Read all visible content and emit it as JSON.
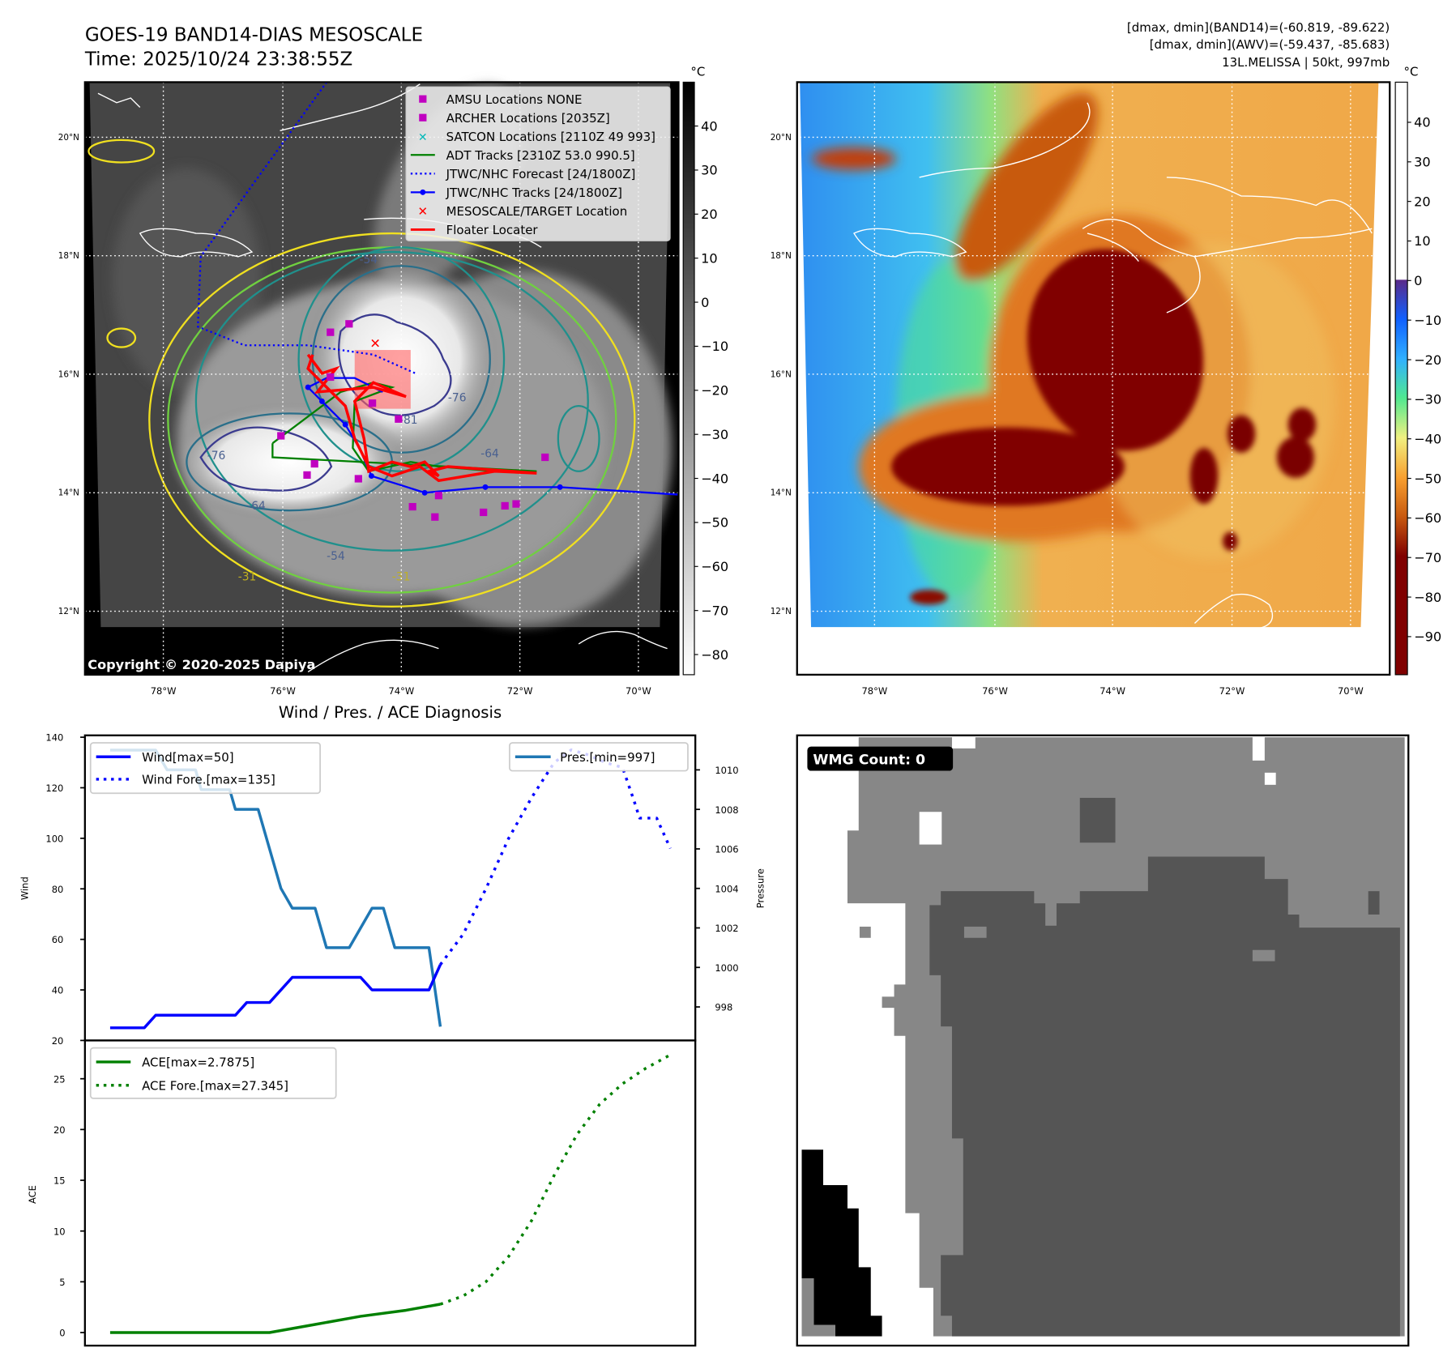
{
  "header": {
    "title": "GOES-19 BAND14-DIAS MESOSCALE",
    "time": "Time: 2025/10/24 23:38:55Z",
    "info_line1": "[dmax, dmin](BAND14)=(-60.819, -89.622)",
    "info_line2": "[dmax, dmin](AWV)=(-59.437, -85.683)",
    "info_line3": "13L.MELISSA | 50kt, 997mb"
  },
  "maps": {
    "lon_labels": [
      "78°W",
      "76°W",
      "74°W",
      "72°W",
      "70°W"
    ],
    "lat_labels": [
      "20°N",
      "18°N",
      "16°N",
      "14°N",
      "12°N"
    ],
    "colorbar_unit": "°C",
    "left_colorbar_ticks": [
      "40",
      "30",
      "20",
      "10",
      "0",
      "−10",
      "−20",
      "−30",
      "−40",
      "−50",
      "−60",
      "−70",
      "−80"
    ],
    "right_colorbar_ticks": [
      "40",
      "30",
      "20",
      "10",
      "0",
      "−10",
      "−20",
      "−30",
      "−40",
      "−50",
      "−60",
      "−70",
      "−80",
      "−90"
    ],
    "copyright": "Copyright © 2020-2025 Dapiya",
    "contour_labels": [
      "-54",
      "-76",
      "-81",
      "-76",
      "-64",
      "-31",
      "-31",
      "-54",
      "-64"
    ],
    "legend": [
      {
        "label": "AMSU Locations NONE",
        "color": "#c000c0"
      },
      {
        "label": "ARCHER Locations [2035Z]",
        "color": "#c000c0"
      },
      {
        "label": "SATCON Locations [2110Z 49 993]",
        "color": "#00c0c0"
      },
      {
        "label": "ADT Tracks [2310Z 53.0 990.5]",
        "color": "#008000"
      },
      {
        "label": "JTWC/NHC Forecast [24/1800Z]",
        "color": "#0000ff"
      },
      {
        "label": "JTWC/NHC Tracks [24/1800Z]",
        "color": "#0000ff"
      },
      {
        "label": "MESOSCALE/TARGET Location",
        "color": "#ff0000"
      },
      {
        "label": "Floater Locater",
        "color": "#ff0000"
      }
    ]
  },
  "wmg": {
    "label": "WMG Count: 0"
  },
  "chart_data": [
    {
      "type": "line",
      "title": "Wind / Pres. / ACE Diagnosis",
      "ylabel": "Wind",
      "y2label": "Pressure",
      "ylim": [
        20,
        140
      ],
      "y2lim": [
        996.3,
        1011.7
      ],
      "xlim": [
        -2.2,
        51.4
      ],
      "yticks": [
        20,
        40,
        60,
        80,
        100,
        120,
        140
      ],
      "y2ticks": [
        998,
        1000,
        1002,
        1004,
        1006,
        1008,
        1010
      ],
      "series": [
        {
          "name": "Wind[max=50]",
          "color": "#0000ff",
          "style": "solid",
          "axis": "left",
          "points": [
            [
              0,
              25
            ],
            [
              3,
              25
            ],
            [
              4,
              30
            ],
            [
              11,
              30
            ],
            [
              12,
              35
            ],
            [
              14,
              35
            ],
            [
              16,
              45
            ],
            [
              22,
              45
            ],
            [
              23,
              40
            ],
            [
              28,
              40
            ],
            [
              29,
              50
            ]
          ]
        },
        {
          "name": "Wind Fore.[max=135]",
          "color": "#0000ff",
          "style": "dotted",
          "axis": "left",
          "points": [
            [
              29,
              50
            ],
            [
              31,
              62
            ],
            [
              33,
              80
            ],
            [
              35,
              100
            ],
            [
              37,
              116
            ],
            [
              39,
              130
            ],
            [
              40.5,
              135
            ],
            [
              42,
              133
            ],
            [
              43.5,
              130
            ],
            [
              45,
              128
            ],
            [
              46,
              115
            ],
            [
              46.5,
              108
            ],
            [
              48,
              108
            ],
            [
              49.2,
              96
            ]
          ]
        },
        {
          "name": "Pres.[min=997]",
          "color": "#1f77b4",
          "style": "solid",
          "axis": "right",
          "points": [
            [
              0,
              1011
            ],
            [
              4,
              1011
            ],
            [
              5,
              1010
            ],
            [
              7.5,
              1010
            ],
            [
              8,
              1009
            ],
            [
              10.5,
              1009
            ],
            [
              11,
              1008
            ],
            [
              13,
              1008
            ],
            [
              15,
              1004
            ],
            [
              16,
              1003
            ],
            [
              18,
              1003
            ],
            [
              19,
              1001
            ],
            [
              21,
              1001
            ],
            [
              23,
              1003
            ],
            [
              24,
              1003
            ],
            [
              25,
              1001
            ],
            [
              28,
              1001
            ],
            [
              29,
              997
            ]
          ]
        }
      ]
    },
    {
      "type": "line",
      "ylabel": "ACE",
      "ylim": [
        -1.3,
        28.4
      ],
      "xlim": [
        -2.2,
        51.4
      ],
      "yticks": [
        0,
        5,
        10,
        15,
        20,
        25
      ],
      "series": [
        {
          "name": "ACE[max=2.7875]",
          "color": "#008000",
          "style": "solid",
          "points": [
            [
              0,
              0
            ],
            [
              14,
              0
            ],
            [
              18,
              0.8
            ],
            [
              22,
              1.6
            ],
            [
              26,
              2.2
            ],
            [
              29,
              2.79
            ]
          ]
        },
        {
          "name": "ACE Fore.[max=27.345]",
          "color": "#008000",
          "style": "dotted",
          "points": [
            [
              29,
              2.79
            ],
            [
              31,
              3.6
            ],
            [
              33,
              5
            ],
            [
              35,
              7.5
            ],
            [
              37,
              11
            ],
            [
              39,
              15.5
            ],
            [
              41,
              19.5
            ],
            [
              43,
              22.5
            ],
            [
              45,
              24.5
            ],
            [
              47,
              26
            ],
            [
              49.2,
              27.35
            ]
          ]
        }
      ]
    }
  ]
}
